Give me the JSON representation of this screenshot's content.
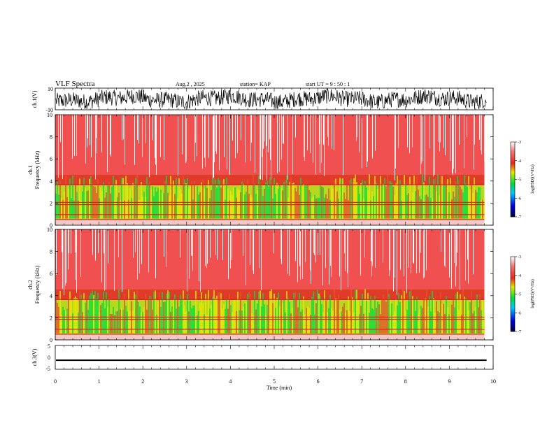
{
  "header": {
    "title": "VLF Spectra",
    "date": "Aug.2 , 2025",
    "station": "station= KAP",
    "start": "start UT = 9 : 50 : 1"
  },
  "colors": {
    "spec_low": "#0000c8",
    "spec_mid": "#00e040",
    "spec_yellow": "#e8e800",
    "spec_high": "#e02020",
    "trace": "#000000"
  },
  "chart_data": [
    {
      "type": "line",
      "name": "ch1-waveform",
      "ylabel": "ch.1(V)",
      "ylim": [
        -10,
        10
      ],
      "yticks": [
        "10",
        "-10"
      ],
      "xlim": [
        0,
        10
      ],
      "description_values": {
        "min": -10,
        "max": 10
      }
    },
    {
      "type": "heatmap",
      "name": "ch1-spectrogram",
      "ylabel": "ch.1\nFrequency (kHz)",
      "ylabel_line1": "ch.1",
      "ylabel_line2": "Frequency (kHz)",
      "ylim": [
        0,
        10
      ],
      "yticks": [
        "0",
        "2",
        "4",
        "6",
        "8",
        "10"
      ],
      "xlim": [
        0,
        10
      ],
      "data_extent_min": 9.8,
      "colorbar": {
        "label": "log(PSD)(V²/Hz)",
        "range": [
          -7,
          -3
        ],
        "ticks": [
          "-3",
          "-4",
          "-5",
          "-6",
          "-7"
        ]
      }
    },
    {
      "type": "heatmap",
      "name": "ch2-spectrogram",
      "ylabel_line1": "ch.2",
      "ylabel_line2": "Frequency (kHz)",
      "ylim": [
        0,
        10
      ],
      "yticks": [
        "0",
        "2",
        "4",
        "6",
        "8",
        "10"
      ],
      "xlim": [
        0,
        10
      ],
      "data_extent_min": 9.8,
      "colorbar": {
        "label": "log(PSD)(V²/Hz)",
        "range": [
          -7,
          -3
        ],
        "ticks": [
          "-3",
          "-4",
          "-5",
          "-6",
          "-7"
        ]
      }
    },
    {
      "type": "line",
      "name": "ch3-waveform",
      "ylabel": "ch.3(V)",
      "ylim": [
        -5,
        5
      ],
      "yticks": [
        "5",
        "0",
        "-5"
      ],
      "xlim": [
        0,
        10
      ],
      "level_values": [
        -1.5,
        -0.9
      ]
    }
  ],
  "xaxis": {
    "label": "Time (min)",
    "ticks": [
      "0",
      "1",
      "2",
      "3",
      "4",
      "5",
      "6",
      "7",
      "8",
      "9",
      "10"
    ]
  }
}
